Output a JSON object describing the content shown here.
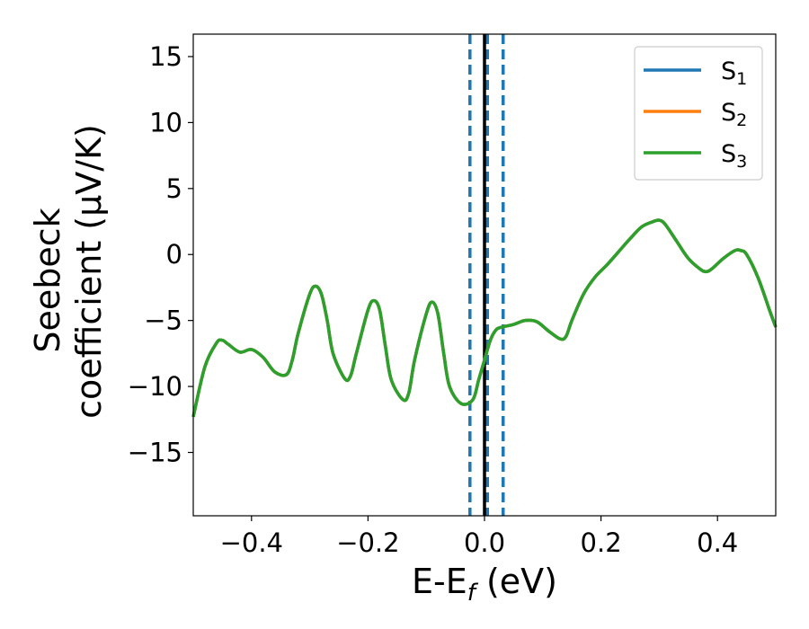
{
  "chart_data": {
    "type": "line",
    "xlabel": "E-E",
    "xlabel_sub": "f",
    "xlabel_unit": " (eV)",
    "ylabel_line1": "Seebeck",
    "ylabel_line2": "coefficient  (μV/K)",
    "xlim": [
      -0.5,
      0.5
    ],
    "ylim": [
      -19.8,
      16.7
    ],
    "xticks": [
      -0.4,
      -0.2,
      0.0,
      0.2,
      0.4
    ],
    "xtick_labels": [
      "−0.4",
      "−0.2",
      "0.0",
      "0.2",
      "0.4"
    ],
    "yticks": [
      -15,
      -10,
      -5,
      0,
      5,
      10,
      15
    ],
    "ytick_labels": [
      "−15",
      "−10",
      "−5",
      "0",
      "5",
      "10",
      "15"
    ],
    "grid": false,
    "legend_position": "top-right",
    "vlines": [
      {
        "x": 0.0,
        "color": "#000000",
        "style": "solid"
      },
      {
        "x": -0.025,
        "color": "#1f77b4",
        "style": "dashed"
      },
      {
        "x": 0.005,
        "color": "#1f77b4",
        "style": "dashed"
      },
      {
        "x": 0.032,
        "color": "#1f77b4",
        "style": "dashed"
      }
    ],
    "x": [
      -0.5,
      -0.48,
      -0.46,
      -0.45,
      -0.44,
      -0.42,
      -0.4,
      -0.38,
      -0.36,
      -0.34,
      -0.33,
      -0.32,
      -0.3,
      -0.29,
      -0.28,
      -0.27,
      -0.26,
      -0.24,
      -0.23,
      -0.22,
      -0.2,
      -0.19,
      -0.18,
      -0.17,
      -0.16,
      -0.14,
      -0.13,
      -0.12,
      -0.1,
      -0.09,
      -0.08,
      -0.07,
      -0.06,
      -0.04,
      -0.02,
      -0.01,
      0.0,
      0.01,
      0.02,
      0.03,
      0.05,
      0.07,
      0.09,
      0.11,
      0.13,
      0.14,
      0.15,
      0.17,
      0.19,
      0.21,
      0.23,
      0.25,
      0.27,
      0.29,
      0.3,
      0.31,
      0.33,
      0.35,
      0.37,
      0.38,
      0.39,
      0.41,
      0.43,
      0.44,
      0.45,
      0.47,
      0.49,
      0.5
    ],
    "series": [
      {
        "name": "S",
        "sub": "1",
        "color": "#1f77b4",
        "values": [
          -12.3,
          -8.5,
          -6.7,
          -6.5,
          -6.8,
          -7.4,
          -7.2,
          -7.8,
          -8.9,
          -9.1,
          -8.0,
          -6.0,
          -3.0,
          -2.4,
          -3.0,
          -5.0,
          -7.5,
          -9.4,
          -9.2,
          -7.5,
          -4.2,
          -3.5,
          -4.2,
          -7.0,
          -9.5,
          -11.0,
          -10.5,
          -8.0,
          -4.5,
          -3.6,
          -4.5,
          -7.5,
          -10.0,
          -11.3,
          -11.0,
          -9.5,
          -8.0,
          -6.5,
          -5.7,
          -5.5,
          -5.3,
          -5.0,
          -5.1,
          -5.8,
          -6.4,
          -6.2,
          -5.0,
          -3.0,
          -1.7,
          -0.8,
          0.2,
          1.2,
          2.1,
          2.5,
          2.6,
          2.3,
          1.0,
          -0.3,
          -1.1,
          -1.3,
          -1.1,
          -0.3,
          0.3,
          0.3,
          0.0,
          -1.8,
          -4.3,
          -5.5
        ]
      },
      {
        "name": "S",
        "sub": "2",
        "color": "#ff7f0e",
        "values": [
          -12.3,
          -8.5,
          -6.7,
          -6.5,
          -6.8,
          -7.4,
          -7.2,
          -7.8,
          -8.9,
          -9.1,
          -8.0,
          -6.0,
          -3.0,
          -2.4,
          -3.0,
          -5.0,
          -7.5,
          -9.4,
          -9.2,
          -7.5,
          -4.2,
          -3.5,
          -4.2,
          -7.0,
          -9.5,
          -11.0,
          -10.5,
          -8.0,
          -4.5,
          -3.6,
          -4.5,
          -7.5,
          -10.0,
          -11.3,
          -11.0,
          -9.5,
          -8.0,
          -6.5,
          -5.7,
          -5.5,
          -5.3,
          -5.0,
          -5.1,
          -5.8,
          -6.4,
          -6.2,
          -5.0,
          -3.0,
          -1.7,
          -0.8,
          0.2,
          1.2,
          2.1,
          2.5,
          2.6,
          2.3,
          1.0,
          -0.3,
          -1.1,
          -1.3,
          -1.1,
          -0.3,
          0.3,
          0.3,
          0.0,
          -1.8,
          -4.3,
          -5.5
        ]
      },
      {
        "name": "S",
        "sub": "3",
        "color": "#2ca02c",
        "values": [
          -12.3,
          -8.5,
          -6.7,
          -6.5,
          -6.8,
          -7.4,
          -7.2,
          -7.8,
          -8.9,
          -9.1,
          -8.0,
          -6.0,
          -3.0,
          -2.4,
          -3.0,
          -5.0,
          -7.5,
          -9.4,
          -9.2,
          -7.5,
          -4.2,
          -3.5,
          -4.2,
          -7.0,
          -9.5,
          -11.0,
          -10.5,
          -8.0,
          -4.5,
          -3.6,
          -4.5,
          -7.5,
          -10.0,
          -11.3,
          -11.0,
          -9.5,
          -8.0,
          -6.5,
          -5.7,
          -5.5,
          -5.3,
          -5.0,
          -5.1,
          -5.8,
          -6.4,
          -6.2,
          -5.0,
          -3.0,
          -1.7,
          -0.8,
          0.2,
          1.2,
          2.1,
          2.5,
          2.6,
          2.3,
          1.0,
          -0.3,
          -1.1,
          -1.3,
          -1.1,
          -0.3,
          0.3,
          0.3,
          0.0,
          -1.8,
          -4.3,
          -5.5
        ]
      }
    ]
  }
}
